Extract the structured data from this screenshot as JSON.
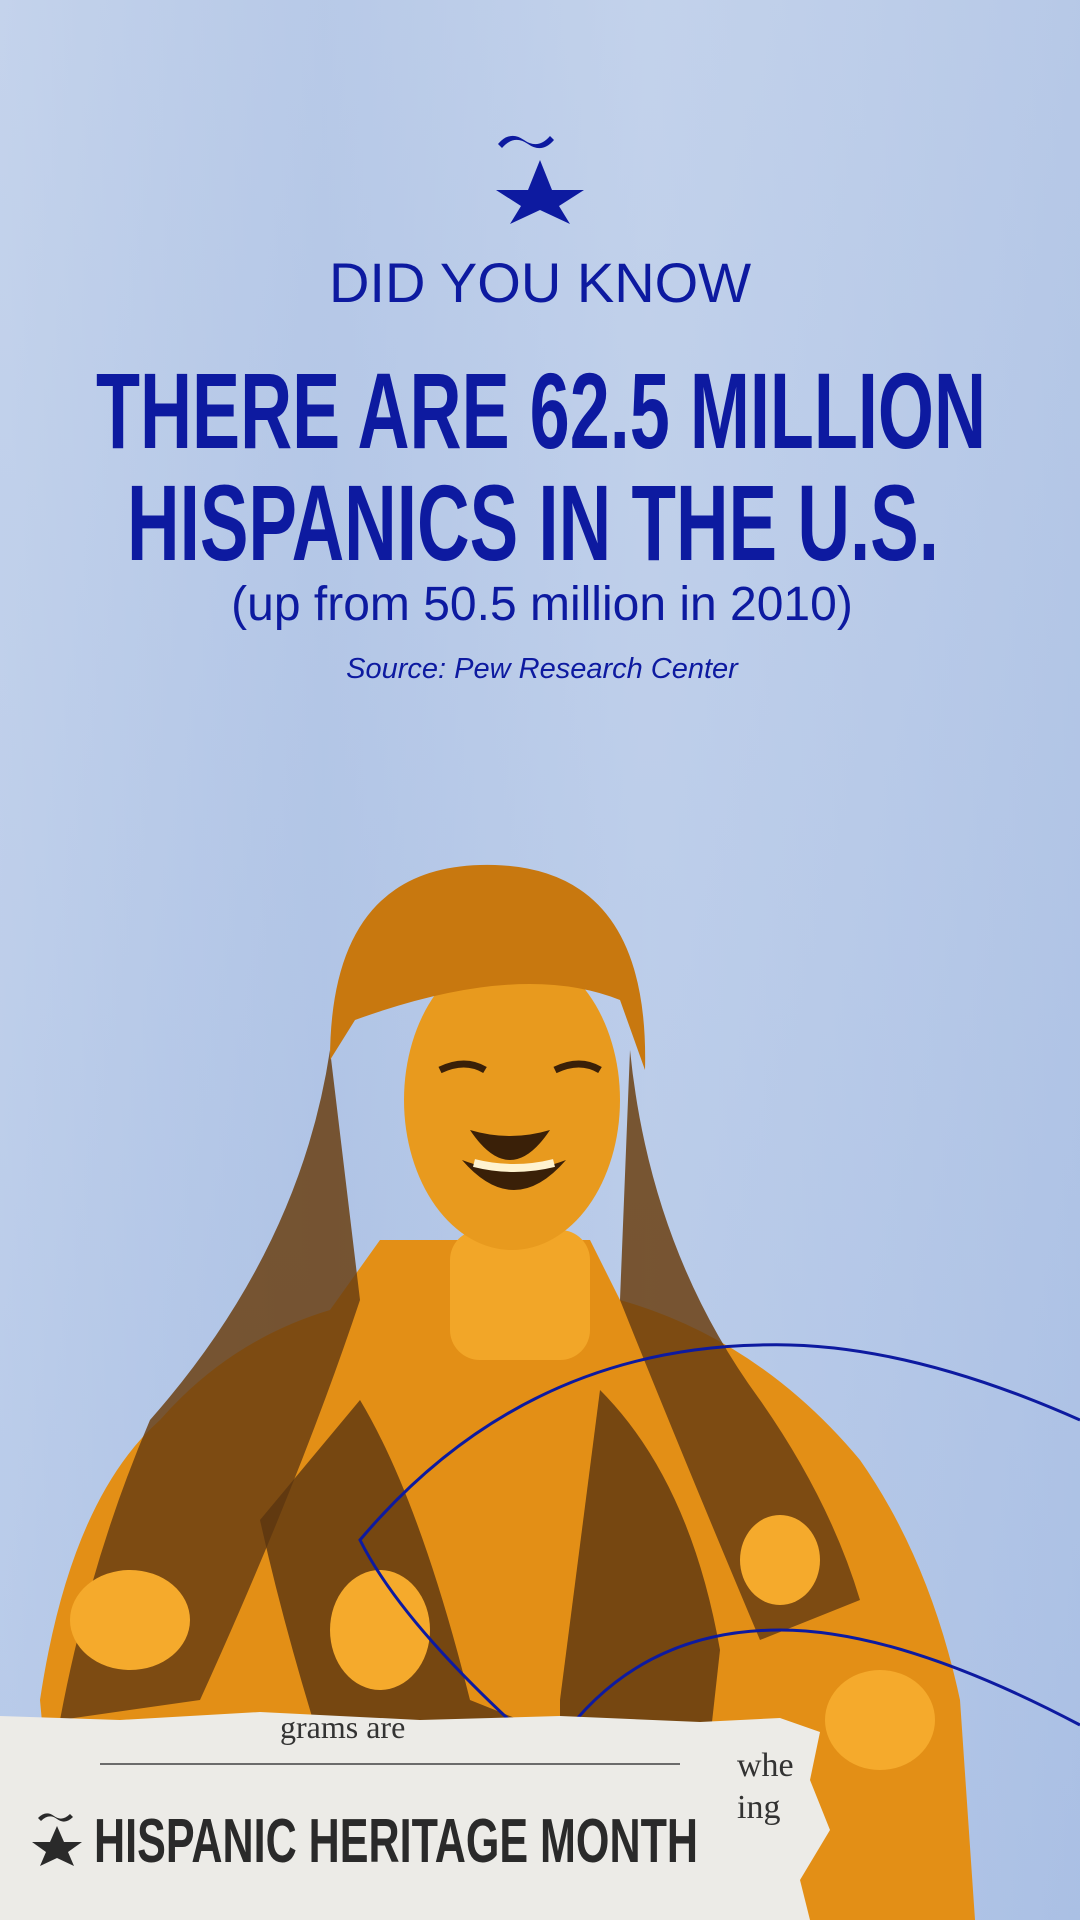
{
  "header": {
    "kicker": "DID YOU KNOW",
    "headline": [
      "THERE ARE 62.5 MILLION",
      "HISPANICS IN THE U.S."
    ],
    "subline": "(up from 50.5 million in 2010)",
    "source": "Source: Pew Research Center"
  },
  "paper": {
    "fragments": [
      "grams are",
      "whe",
      "ing"
    ]
  },
  "footer": {
    "title": "HISPANIC HERITAGE MONTH"
  }
}
